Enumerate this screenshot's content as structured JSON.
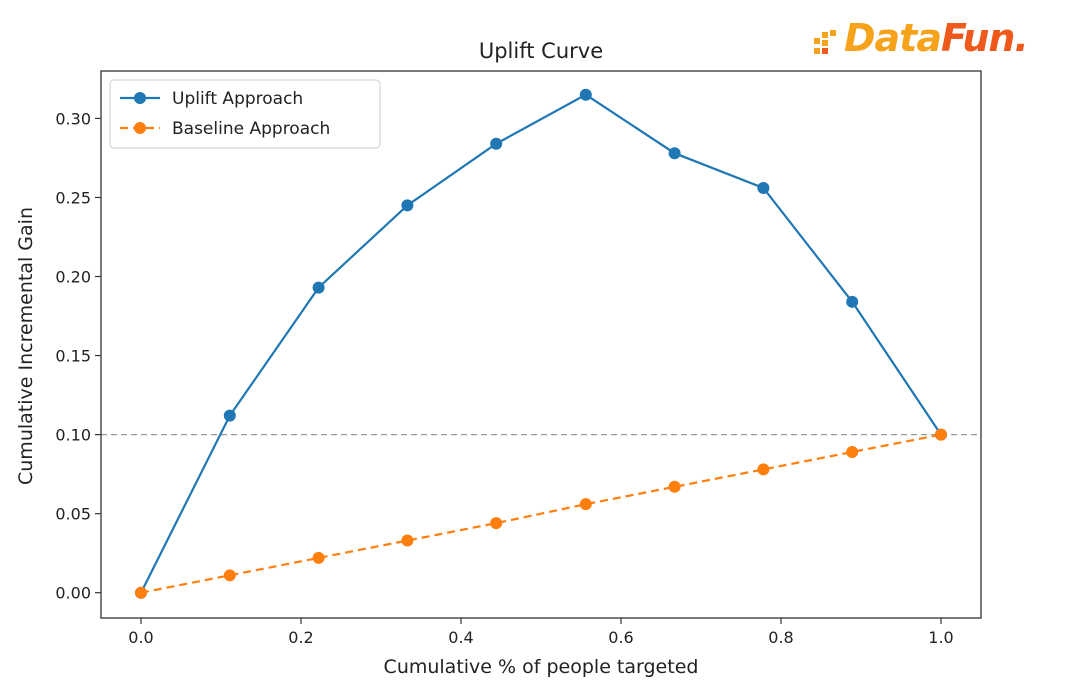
{
  "logo": {
    "part1": "Data",
    "part2": "Fun.",
    "colors": {
      "primary": "#f6a21a",
      "secondary": "#ef5a1c"
    }
  },
  "chart_data": {
    "type": "line",
    "title": "Uplift Curve",
    "xlabel": "Cumulative % of people targeted",
    "ylabel": "Cumulative Incremental Gain",
    "xlim": [
      -0.05,
      1.05
    ],
    "ylim": [
      -0.016,
      0.33
    ],
    "xticks": [
      "0.0",
      "0.2",
      "0.4",
      "0.6",
      "0.8",
      "1.0"
    ],
    "yticks": [
      "0.00",
      "0.05",
      "0.10",
      "0.15",
      "0.20",
      "0.25",
      "0.30"
    ],
    "legend_position": "top-left",
    "grid": false,
    "reference_line": {
      "y": 0.1,
      "style": "dashed",
      "color": "#999999"
    },
    "series": [
      {
        "name": "Uplift Approach",
        "color": "#1f77b4",
        "linestyle": "solid",
        "x": [
          0.0,
          0.111,
          0.222,
          0.333,
          0.444,
          0.556,
          0.667,
          0.778,
          0.889,
          1.0
        ],
        "y": [
          0.0,
          0.112,
          0.193,
          0.245,
          0.284,
          0.315,
          0.278,
          0.256,
          0.184,
          0.1
        ]
      },
      {
        "name": "Baseline Approach",
        "color": "#ff7f0e",
        "linestyle": "dashed",
        "x": [
          0.0,
          0.111,
          0.222,
          0.333,
          0.444,
          0.556,
          0.667,
          0.778,
          0.889,
          1.0
        ],
        "y": [
          0.0,
          0.011,
          0.022,
          0.033,
          0.044,
          0.056,
          0.067,
          0.078,
          0.089,
          0.1
        ]
      }
    ]
  }
}
